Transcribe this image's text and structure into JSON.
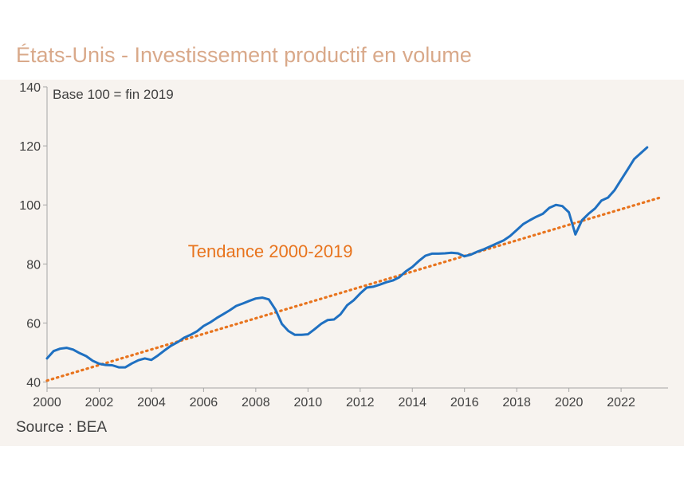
{
  "chart_data": {
    "type": "line",
    "title": "États-Unis - Investissement productif en volume",
    "note": "Base 100 = fin 2019",
    "source": "Source : BEA",
    "xlim": [
      2000,
      2023.8
    ],
    "ylim": [
      38,
      140
    ],
    "x_ticks": [
      {
        "value": 2000,
        "label": "2000"
      },
      {
        "value": 2002,
        "label": "2002"
      },
      {
        "value": 2004,
        "label": "2004"
      },
      {
        "value": 2006,
        "label": "2006"
      },
      {
        "value": 2008,
        "label": "2008"
      },
      {
        "value": 2010,
        "label": "2010"
      },
      {
        "value": 2012,
        "label": "2012"
      },
      {
        "value": 2014,
        "label": "2014"
      },
      {
        "value": 2016,
        "label": "2016"
      },
      {
        "value": 2018,
        "label": "2018"
      },
      {
        "value": 2020,
        "label": "2020"
      },
      {
        "value": 2022,
        "label": "2022"
      }
    ],
    "y_ticks": [
      {
        "value": 40,
        "label": "40"
      },
      {
        "value": 60,
        "label": "60"
      },
      {
        "value": 80,
        "label": "80"
      },
      {
        "value": 100,
        "label": "100"
      },
      {
        "value": 120,
        "label": "120"
      },
      {
        "value": 140,
        "label": "140"
      }
    ],
    "colors": {
      "series": "#1f70c1",
      "trend": "#e8741e",
      "axis": "#a6a6a6"
    },
    "series": [
      {
        "name": "Investissement productif",
        "x": [
          2000.0,
          2000.25,
          2000.5,
          2000.75,
          2001.0,
          2001.25,
          2001.5,
          2001.75,
          2002.0,
          2002.25,
          2002.5,
          2002.75,
          2003.0,
          2003.25,
          2003.5,
          2003.75,
          2004.0,
          2004.25,
          2004.5,
          2004.75,
          2005.0,
          2005.25,
          2005.5,
          2005.75,
          2006.0,
          2006.25,
          2006.5,
          2006.75,
          2007.0,
          2007.25,
          2007.5,
          2007.75,
          2008.0,
          2008.25,
          2008.5,
          2008.75,
          2009.0,
          2009.25,
          2009.5,
          2009.75,
          2010.0,
          2010.25,
          2010.5,
          2010.75,
          2011.0,
          2011.25,
          2011.5,
          2011.75,
          2012.0,
          2012.25,
          2012.5,
          2012.75,
          2013.0,
          2013.25,
          2013.5,
          2013.75,
          2014.0,
          2014.25,
          2014.5,
          2014.75,
          2015.0,
          2015.25,
          2015.5,
          2015.75,
          2016.0,
          2016.25,
          2016.5,
          2016.75,
          2017.0,
          2017.25,
          2017.5,
          2017.75,
          2018.0,
          2018.25,
          2018.5,
          2018.75,
          2019.0,
          2019.25,
          2019.5,
          2019.75,
          2020.0,
          2020.25,
          2020.5,
          2020.75,
          2021.0,
          2021.25,
          2021.5,
          2021.75,
          2022.0,
          2022.25,
          2022.5,
          2022.75,
          2023.0
        ],
        "y": [
          48,
          50.5,
          51.3,
          51.6,
          51,
          49.8,
          48.8,
          47.2,
          46.2,
          45.8,
          45.7,
          45,
          45,
          46.3,
          47.4,
          48,
          47.5,
          49,
          50.7,
          52.3,
          53.5,
          55,
          56,
          57.2,
          59,
          60.2,
          61.7,
          63,
          64.3,
          65.8,
          66.6,
          67.5,
          68.3,
          68.6,
          68,
          64.6,
          59.7,
          57.3,
          56,
          56,
          56.2,
          57.9,
          59.7,
          61,
          61.2,
          63,
          66,
          67.7,
          70,
          72,
          72.3,
          73,
          73.8,
          74.4,
          75.5,
          77.5,
          79,
          81,
          82.8,
          83.5,
          83.5,
          83.6,
          83.8,
          83.6,
          82.6,
          83.2,
          84.2,
          85,
          86,
          87,
          88,
          89.5,
          91.5,
          93.5,
          94.8,
          96,
          97,
          99,
          100,
          99.6,
          97.5,
          90,
          94.8,
          97,
          98.8,
          101.5,
          102.5,
          105,
          108.5,
          112,
          115.5,
          117.5,
          119.5
        ]
      },
      {
        "name": "Tendance 2000-2019",
        "style": "dotted",
        "x": [
          2000,
          2023.5
        ],
        "y": [
          40.5,
          102.5
        ]
      }
    ],
    "annotations": [
      {
        "text": "Tendance 2000-2019",
        "x": 2005.4,
        "y": 82.3
      }
    ]
  }
}
